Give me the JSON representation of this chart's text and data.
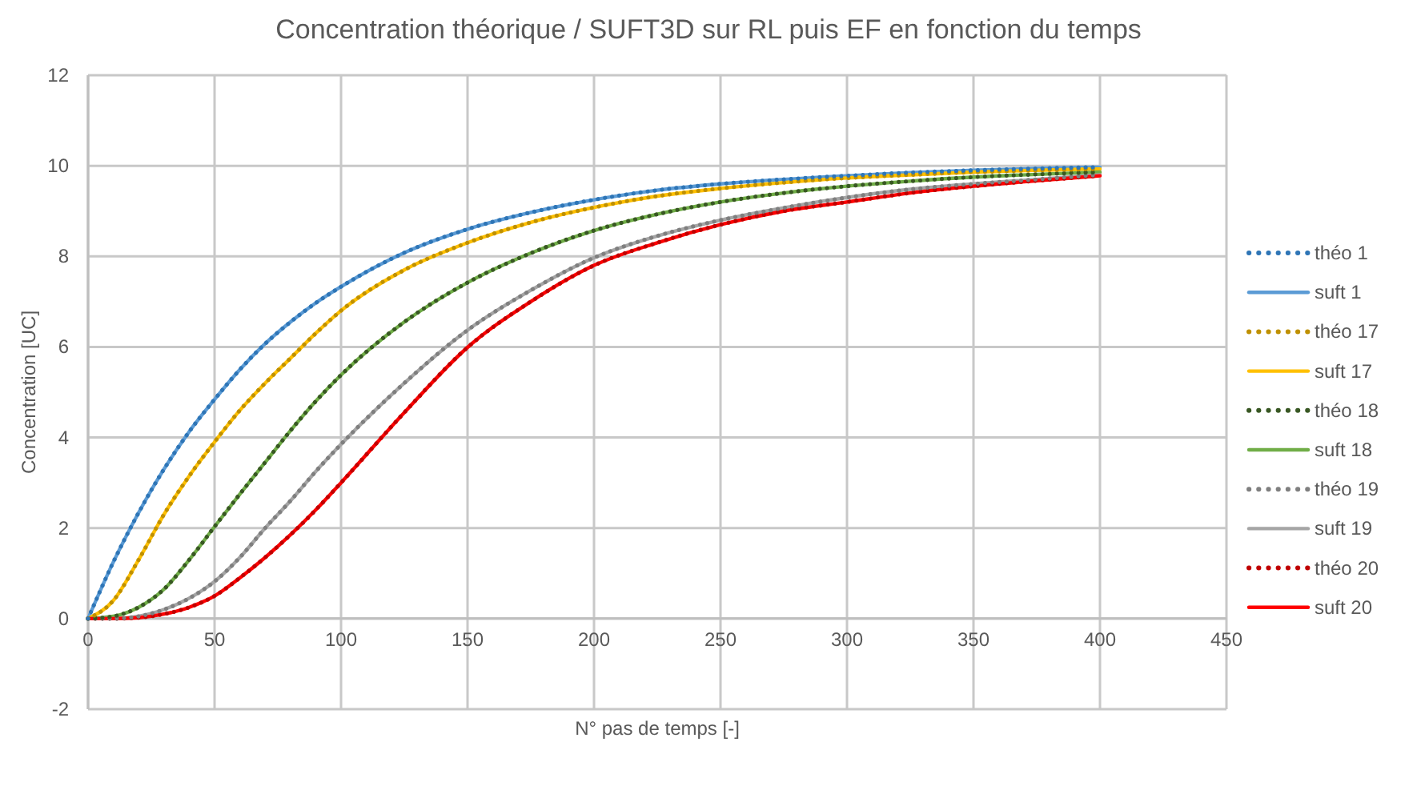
{
  "chart_data": {
    "type": "line",
    "title": "Concentration théorique / SUFT3D sur RL puis EF en fonction du temps",
    "xlabel": "N° pas de temps [-]",
    "ylabel": "Concentration [UC]",
    "x": [
      0,
      10,
      20,
      30,
      40,
      50,
      60,
      70,
      80,
      90,
      100,
      125,
      150,
      175,
      200,
      225,
      250,
      275,
      300,
      325,
      350,
      375,
      400
    ],
    "xlim": [
      0,
      450
    ],
    "xticks": [
      0,
      50,
      100,
      150,
      200,
      250,
      300,
      350,
      400,
      450
    ],
    "ylim": [
      -2,
      12
    ],
    "yticks": [
      -2,
      0,
      2,
      4,
      6,
      8,
      10,
      12
    ],
    "grid": true,
    "legend": "right",
    "series": [
      {
        "name": "théo 1",
        "color": "#2e75b6",
        "line_style": "dotted",
        "values": [
          0,
          1.25,
          2.34,
          3.3,
          4.13,
          4.84,
          5.5,
          6.07,
          6.55,
          6.97,
          7.33,
          8.08,
          8.6,
          8.97,
          9.25,
          9.46,
          9.6,
          9.7,
          9.78,
          9.85,
          9.9,
          9.94,
          9.97
        ]
      },
      {
        "name": "suft 1",
        "color": "#5b9bd5",
        "line_style": "solid",
        "values": [
          0,
          1.25,
          2.34,
          3.3,
          4.13,
          4.84,
          5.5,
          6.07,
          6.55,
          6.97,
          7.33,
          8.08,
          8.6,
          8.97,
          9.25,
          9.46,
          9.6,
          9.7,
          9.78,
          9.85,
          9.9,
          9.94,
          9.97
        ]
      },
      {
        "name": "théo 17",
        "color": "#bf9000",
        "line_style": "dotted",
        "values": [
          0,
          0.4,
          1.3,
          2.3,
          3.15,
          3.9,
          4.6,
          5.2,
          5.75,
          6.3,
          6.8,
          7.7,
          8.3,
          8.75,
          9.08,
          9.33,
          9.5,
          9.63,
          9.73,
          9.8,
          9.86,
          9.9,
          9.93
        ]
      },
      {
        "name": "suft 17",
        "color": "#ffc000",
        "line_style": "solid",
        "values": [
          0,
          0.4,
          1.3,
          2.3,
          3.15,
          3.9,
          4.6,
          5.2,
          5.75,
          6.3,
          6.8,
          7.7,
          8.3,
          8.75,
          9.08,
          9.33,
          9.5,
          9.63,
          9.73,
          9.8,
          9.86,
          9.9,
          9.93
        ]
      },
      {
        "name": "théo 18",
        "color": "#385723",
        "line_style": "dotted",
        "values": [
          0,
          0.05,
          0.25,
          0.65,
          1.3,
          2.03,
          2.75,
          3.45,
          4.15,
          4.8,
          5.38,
          6.55,
          7.42,
          8.07,
          8.57,
          8.93,
          9.2,
          9.4,
          9.55,
          9.66,
          9.75,
          9.81,
          9.86
        ]
      },
      {
        "name": "suft 18",
        "color": "#70ad47",
        "line_style": "solid",
        "values": [
          0,
          0.05,
          0.25,
          0.65,
          1.3,
          2.03,
          2.75,
          3.45,
          4.15,
          4.8,
          5.38,
          6.55,
          7.42,
          8.07,
          8.57,
          8.93,
          9.2,
          9.4,
          9.55,
          9.66,
          9.75,
          9.81,
          9.86
        ]
      },
      {
        "name": "théo 19",
        "color": "#7f7f7f",
        "line_style": "dotted",
        "values": [
          0,
          0,
          0.05,
          0.2,
          0.45,
          0.82,
          1.35,
          2.0,
          2.6,
          3.25,
          3.85,
          5.2,
          6.37,
          7.25,
          7.97,
          8.45,
          8.8,
          9.07,
          9.3,
          9.48,
          9.6,
          9.7,
          9.8
        ]
      },
      {
        "name": "suft 19",
        "color": "#a5a5a5",
        "line_style": "solid",
        "values": [
          0,
          0,
          0.05,
          0.2,
          0.45,
          0.82,
          1.35,
          2.0,
          2.6,
          3.25,
          3.85,
          5.2,
          6.37,
          7.25,
          7.97,
          8.45,
          8.8,
          9.07,
          9.3,
          9.48,
          9.6,
          9.7,
          9.8
        ]
      },
      {
        "name": "théo 20",
        "color": "#c00000",
        "line_style": "dotted",
        "values": [
          0,
          0,
          0.02,
          0.1,
          0.25,
          0.5,
          0.9,
          1.35,
          1.85,
          2.4,
          3.0,
          4.55,
          5.99,
          7.0,
          7.8,
          8.3,
          8.7,
          9.0,
          9.2,
          9.4,
          9.55,
          9.67,
          9.78
        ]
      },
      {
        "name": "suft 20",
        "color": "#ff0000",
        "line_style": "solid",
        "values": [
          0,
          0,
          0.02,
          0.1,
          0.25,
          0.5,
          0.9,
          1.35,
          1.85,
          2.4,
          3.0,
          4.55,
          5.99,
          7.0,
          7.8,
          8.3,
          8.7,
          9.0,
          9.2,
          9.4,
          9.55,
          9.67,
          9.78
        ]
      }
    ]
  }
}
